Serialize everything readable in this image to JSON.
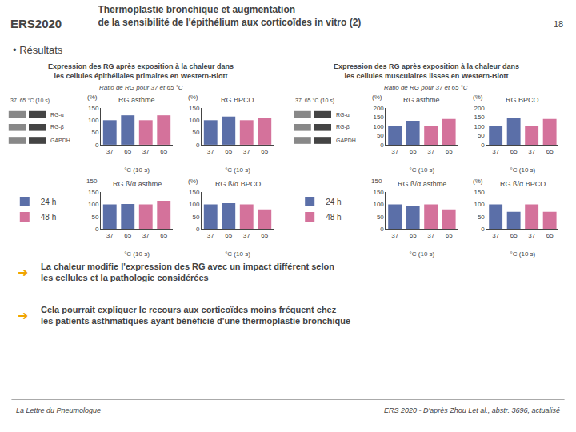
{
  "title": "Thermoplastie bronchique et augmentation\nde la sensibilité de l'épithélium aux corticoïdes in vitro (2)",
  "annotations": [
    {
      "text": "ERS2020"
    },
    {
      "text": "18"
    },
    {
      "text": "• Résultats"
    },
    {
      "text": "➜",
      "color": "#f0a500"
    },
    {
      "text": "La chaleur modifie l'expression des RG avec un impact différent selon\nles cellules et la pathologie considérées"
    },
    {
      "text": "➜",
      "color": "#f0a500"
    },
    {
      "text": "Cela pourrait expliquer le recours aux corticoïdes moins fréquent chez\nles patients asthmatiques ayant bénéficié d'une thermoplastie bronchique"
    },
    {
      "text": "La Lettre du Pneumologue"
    },
    {
      "text": "ERS 2020 - D'après Zhou Let al., abstr. 3696, actualisé"
    }
  ],
  "sections": [
    {
      "title": "Expression des RG après exposition à la chaleur dans\nles cellules épithéliales primaires en Western-Blott",
      "subtitle": "Ratio de RG pour 37 et 65 °C",
      "annotations": [
        "37  65 °C (10 s)",
        "RG-α",
        "RG-β",
        "GAPDH"
      ]
    },
    {
      "title": "Expression des RG après exposition à la chaleur dans\nles cellules musculaires lisses en Western-Blott",
      "subtitle": "Ratio de RG pour 37 et 65 °C",
      "annotations": [
        "37  65 °C (10 s)",
        "RG-α",
        "RG-β",
        "GAPDH"
      ]
    }
  ],
  "chart_data": [
    {
      "type": "bar",
      "title": "RG asthme",
      "categories": [
        "37",
        "65",
        "37",
        "65"
      ],
      "xlabel": "°C (10 s)",
      "series": [
        {
          "name": "24 h",
          "color": "#5b6fa8",
          "values": [
            100,
            120,
            null,
            null
          ]
        },
        {
          "name": "48 h",
          "color": "#d4729b",
          "values": [
            null,
            null,
            100,
            120
          ]
        }
      ],
      "ylim": [
        0,
        150
      ],
      "yticks": [
        0,
        50,
        100,
        150
      ],
      "grid": false,
      "legend": "left",
      "annotations": [
        "(%)"
      ]
    },
    {
      "type": "bar",
      "title": "RG BPCO",
      "categories": [
        "37",
        "65",
        "37",
        "65"
      ],
      "xlabel": "°C (10 s)",
      "series": [
        {
          "name": "24 h",
          "color": "#5b6fa8",
          "values": [
            100,
            115,
            null,
            null
          ]
        },
        {
          "name": "48 h",
          "color": "#d4729b",
          "values": [
            null,
            null,
            100,
            110
          ]
        }
      ],
      "ylim": [
        0,
        150
      ],
      "yticks": [
        0,
        50,
        100,
        150
      ],
      "grid": false,
      "annotations": [
        "(%)"
      ]
    },
    {
      "type": "bar",
      "title": "RG ß/α asthme",
      "categories": [
        "37",
        "65",
        "37",
        "65"
      ],
      "xlabel": "°C (10 s)",
      "series": [
        {
          "name": "24 h",
          "color": "#5b6fa8",
          "values": [
            100,
            102,
            null,
            null
          ]
        },
        {
          "name": "48 h",
          "color": "#d4729b",
          "values": [
            null,
            null,
            100,
            115
          ]
        }
      ],
      "ylim": [
        0,
        150
      ],
      "yticks": [
        0,
        50,
        100,
        150
      ],
      "grid": false,
      "annotations": [
        "150"
      ]
    },
    {
      "type": "bar",
      "title": "RG ß/α BPCO",
      "categories": [
        "37",
        "65",
        "37",
        "65"
      ],
      "xlabel": "°C (10 s)",
      "series": [
        {
          "name": "24 h",
          "color": "#5b6fa8",
          "values": [
            100,
            105,
            null,
            null
          ]
        },
        {
          "name": "48 h",
          "color": "#d4729b",
          "values": [
            null,
            null,
            100,
            80
          ]
        }
      ],
      "ylim": [
        0,
        150
      ],
      "yticks": [
        0,
        50,
        100,
        150
      ],
      "grid": false,
      "annotations": [
        "(%)"
      ]
    },
    {
      "type": "bar",
      "title": "RG asthme",
      "categories": [
        "37",
        "65",
        "37",
        "65"
      ],
      "xlabel": "°C (10 s)",
      "series": [
        {
          "name": "24 h",
          "color": "#5b6fa8",
          "values": [
            100,
            130,
            null,
            null
          ]
        },
        {
          "name": "48 h",
          "color": "#d4729b",
          "values": [
            null,
            null,
            100,
            140
          ]
        }
      ],
      "ylim": [
        0,
        200
      ],
      "yticks": [
        0,
        50,
        100,
        150,
        200
      ],
      "grid": false,
      "legend": "left",
      "annotations": [
        "(%)"
      ]
    },
    {
      "type": "bar",
      "title": "RG BPCO",
      "categories": [
        "37",
        "65",
        "37",
        "65"
      ],
      "xlabel": "°C (10 s)",
      "series": [
        {
          "name": "24 h",
          "color": "#5b6fa8",
          "values": [
            100,
            145,
            null,
            null
          ]
        },
        {
          "name": "48 h",
          "color": "#d4729b",
          "values": [
            null,
            null,
            100,
            140
          ]
        }
      ],
      "ylim": [
        0,
        200
      ],
      "yticks": [
        0,
        50,
        100,
        150,
        200
      ],
      "grid": false,
      "annotations": [
        "(%)"
      ]
    },
    {
      "type": "bar",
      "title": "RG ß/α asthme",
      "categories": [
        "37",
        "65",
        "37",
        "65"
      ],
      "xlabel": "°C (10 s)",
      "series": [
        {
          "name": "24 h",
          "color": "#5b6fa8",
          "values": [
            100,
            95,
            null,
            null
          ]
        },
        {
          "name": "48 h",
          "color": "#d4729b",
          "values": [
            null,
            null,
            100,
            80
          ]
        }
      ],
      "ylim": [
        0,
        150
      ],
      "yticks": [
        0,
        50,
        100,
        150
      ],
      "grid": false,
      "annotations": [
        "150"
      ]
    },
    {
      "type": "bar",
      "title": "RG ß/α BPCO",
      "categories": [
        "37",
        "65",
        "37",
        "65"
      ],
      "xlabel": "°C (10 s)",
      "series": [
        {
          "name": "24 h",
          "color": "#5b6fa8",
          "values": [
            100,
            70,
            null,
            null
          ]
        },
        {
          "name": "48 h",
          "color": "#d4729b",
          "values": [
            null,
            null,
            100,
            70
          ]
        }
      ],
      "ylim": [
        0,
        150
      ],
      "yticks": [
        0,
        50,
        100,
        150
      ],
      "grid": false,
      "annotations": [
        "(%)"
      ]
    }
  ]
}
